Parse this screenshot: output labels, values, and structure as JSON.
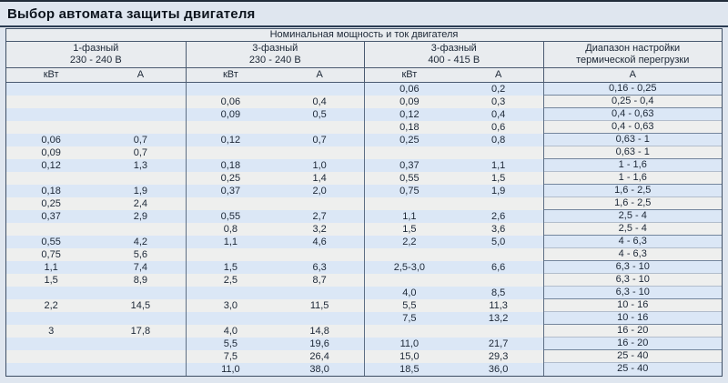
{
  "title": "Выбор автомата защиты двигателя",
  "colors": {
    "page_bg": "#dfe6ef",
    "stripe_blue": "#dbe7f6",
    "stripe_white": "#eeefee",
    "header_bg": "#e9ecef",
    "border_dark": "#4a5a70"
  },
  "table": {
    "main_header": "Номинальная мощность и ток двигателя",
    "groups": [
      {
        "line1": "1-фазный",
        "line2": "230 - 240 В"
      },
      {
        "line1": "3-фазный",
        "line2": "230 - 240 В"
      },
      {
        "line1": "3-фазный",
        "line2": "400 - 415 В"
      },
      {
        "line1": "Диапазон настройки",
        "line2": "термической перегрузки"
      }
    ],
    "unit_kw": "кВт",
    "unit_a": "А",
    "rows": [
      {
        "c1": [
          "",
          ""
        ],
        "c2": [
          "",
          ""
        ],
        "c3": [
          "0,06",
          "0,2"
        ],
        "range": "0,16 - 0,25",
        "sep": true
      },
      {
        "c1": [
          "",
          ""
        ],
        "c2": [
          "0,06",
          "0,4"
        ],
        "c3": [
          "0,09",
          "0,3"
        ],
        "range": "0,25 - 0,4",
        "sep": true
      },
      {
        "c1": [
          "",
          ""
        ],
        "c2": [
          "0,09",
          "0,5"
        ],
        "c3": [
          "0,12",
          "0,4"
        ],
        "range": "0,4 - 0,63",
        "sep": false
      },
      {
        "c1": [
          "",
          ""
        ],
        "c2": [
          "",
          ""
        ],
        "c3": [
          "0,18",
          "0,6"
        ],
        "range": "0,4 - 0,63",
        "sep": true
      },
      {
        "c1": [
          "0,06",
          "0,7"
        ],
        "c2": [
          "0,12",
          "0,7"
        ],
        "c3": [
          "0,25",
          "0,8"
        ],
        "range": "0,63 - 1",
        "sep": false
      },
      {
        "c1": [
          "0,09",
          "0,7"
        ],
        "c2": [
          "",
          ""
        ],
        "c3": [
          "",
          ""
        ],
        "range": "0,63 - 1",
        "sep": true
      },
      {
        "c1": [
          "0,12",
          "1,3"
        ],
        "c2": [
          "0,18",
          "1,0"
        ],
        "c3": [
          "0,37",
          "1,1"
        ],
        "range": "1 - 1,6",
        "sep": false
      },
      {
        "c1": [
          "",
          ""
        ],
        "c2": [
          "0,25",
          "1,4"
        ],
        "c3": [
          "0,55",
          "1,5"
        ],
        "range": "1 - 1,6",
        "sep": true
      },
      {
        "c1": [
          "0,18",
          "1,9"
        ],
        "c2": [
          "0,37",
          "2,0"
        ],
        "c3": [
          "0,75",
          "1,9"
        ],
        "range": "1,6 - 2,5",
        "sep": false
      },
      {
        "c1": [
          "0,25",
          "2,4"
        ],
        "c2": [
          "",
          ""
        ],
        "c3": [
          "",
          ""
        ],
        "range": "1,6 - 2,5",
        "sep": true
      },
      {
        "c1": [
          "0,37",
          "2,9"
        ],
        "c2": [
          "0,55",
          "2,7"
        ],
        "c3": [
          "1,1",
          "2,6"
        ],
        "range": "2,5 - 4",
        "sep": false
      },
      {
        "c1": [
          "",
          ""
        ],
        "c2": [
          "0,8",
          "3,2"
        ],
        "c3": [
          "1,5",
          "3,6"
        ],
        "range": "2,5 - 4",
        "sep": true
      },
      {
        "c1": [
          "0,55",
          "4,2"
        ],
        "c2": [
          "1,1",
          "4,6"
        ],
        "c3": [
          "2,2",
          "5,0"
        ],
        "range": "4 - 6,3",
        "sep": false
      },
      {
        "c1": [
          "0,75",
          "5,6"
        ],
        "c2": [
          "",
          ""
        ],
        "c3": [
          "",
          ""
        ],
        "range": "4 - 6,3",
        "sep": true
      },
      {
        "c1": [
          "1,1",
          "7,4"
        ],
        "c2": [
          "1,5",
          "6,3"
        ],
        "c3": [
          "2,5-3,0",
          "6,6"
        ],
        "range": "6,3 - 10",
        "sep": false
      },
      {
        "c1": [
          "1,5",
          "8,9"
        ],
        "c2": [
          "2,5",
          "8,7"
        ],
        "c3": [
          "",
          ""
        ],
        "range": "6,3 - 10",
        "sep": false
      },
      {
        "c1": [
          "",
          ""
        ],
        "c2": [
          "",
          ""
        ],
        "c3": [
          "4,0",
          "8,5"
        ],
        "range": "6,3 - 10",
        "sep": true
      },
      {
        "c1": [
          "2,2",
          "14,5"
        ],
        "c2": [
          "3,0",
          "11,5"
        ],
        "c3": [
          "5,5",
          "11,3"
        ],
        "range": "10 - 16",
        "sep": false
      },
      {
        "c1": [
          "",
          ""
        ],
        "c2": [
          "",
          ""
        ],
        "c3": [
          "7,5",
          "13,2"
        ],
        "range": "10 - 16",
        "sep": true
      },
      {
        "c1": [
          "3",
          "17,8"
        ],
        "c2": [
          "4,0",
          "14,8"
        ],
        "c3": [
          "",
          ""
        ],
        "range": "16 - 20",
        "sep": false
      },
      {
        "c1": [
          "",
          ""
        ],
        "c2": [
          "5,5",
          "19,6"
        ],
        "c3": [
          "11,0",
          "21,7"
        ],
        "range": "16 - 20",
        "sep": true
      },
      {
        "c1": [
          "",
          ""
        ],
        "c2": [
          "7,5",
          "26,4"
        ],
        "c3": [
          "15,0",
          "29,3"
        ],
        "range": "25 - 40",
        "sep": false
      },
      {
        "c1": [
          "",
          ""
        ],
        "c2": [
          "11,0",
          "38,0"
        ],
        "c3": [
          "18,5",
          "36,0"
        ],
        "range": "25 - 40",
        "sep": true
      }
    ]
  }
}
